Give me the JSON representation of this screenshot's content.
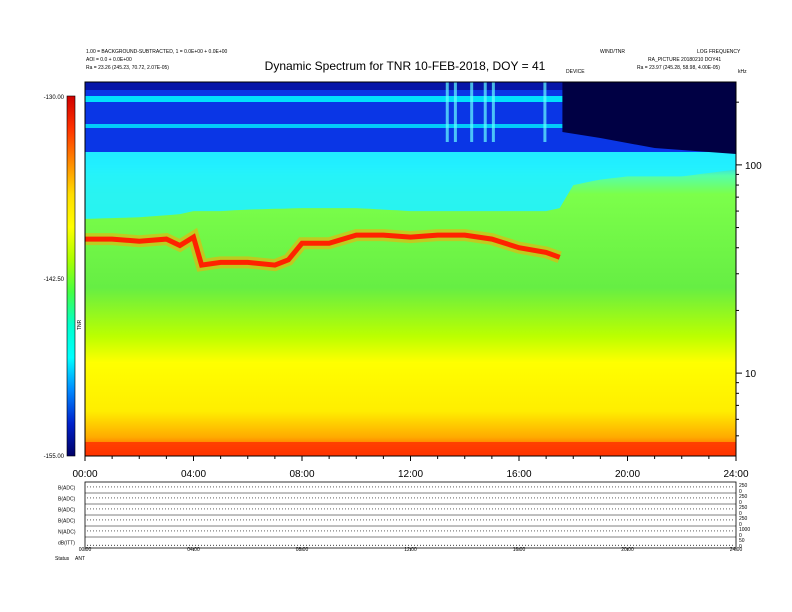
{
  "header": {
    "title": "Dynamic Spectrum for TNR 10-FEB-2018, DOY = 41",
    "meta_left": [
      "1.00 = BACKGROUND-SUBTRACTED, 1 = 0.0E+00 + 0.0E+00",
      "AOI = 0.0 + 0.0E+00",
      "Ra =  23.26 (245.23, 70.72, 2.07E-05)"
    ],
    "meta_right": [
      "WIND/TNR",
      "LOG FREQUENCY",
      "RA_PICTURE 20180210 DOY41",
      "Ra =  23.97 (245.28, 58.98, 4.00E-05)"
    ],
    "right_unit": "kHz",
    "note_mid": "DEVICE"
  },
  "colorbar": {
    "top_label": "-130.00",
    "mid_label": "-142.50",
    "bottom_label": "-155.00",
    "side_label": "TNR",
    "stops": [
      "#d00000",
      "#ff3300",
      "#ff8800",
      "#ffdd00",
      "#ffff00",
      "#aaff00",
      "#44ff44",
      "#00ffcc",
      "#00ffff",
      "#0088ff",
      "#0022cc",
      "#000066"
    ]
  },
  "chart_data": {
    "type": "heatmap",
    "title": "Dynamic Spectrum for TNR 10-FEB-2018, DOY = 41",
    "xlabel": "",
    "ylabel": "kHz",
    "x_ticks": [
      "00:00",
      "04:00",
      "08:00",
      "12:00",
      "16:00",
      "20:00",
      "24:00"
    ],
    "xlim": [
      0,
      24
    ],
    "y_scale": "log",
    "ylim": [
      4,
      250
    ],
    "y_ticks": [
      10,
      100
    ],
    "colorbar_range": [
      -155,
      -130
    ],
    "features": {
      "cyan_boundary_khz": [
        [
          0,
          55
        ],
        [
          2,
          56
        ],
        [
          3.5,
          58
        ],
        [
          4.0,
          60
        ],
        [
          5,
          60
        ],
        [
          6,
          61
        ],
        [
          8,
          62
        ],
        [
          10,
          62
        ],
        [
          12,
          60
        ],
        [
          13.5,
          60
        ],
        [
          15,
          60
        ],
        [
          17,
          60
        ],
        [
          17.5,
          62
        ],
        [
          18,
          80
        ],
        [
          19,
          85
        ],
        [
          20,
          88
        ],
        [
          22,
          88
        ],
        [
          24,
          95
        ]
      ],
      "red_ridge_khz": [
        [
          0,
          44
        ],
        [
          1,
          44
        ],
        [
          2,
          43
        ],
        [
          3,
          44
        ],
        [
          3.5,
          41
        ],
        [
          4.0,
          45
        ],
        [
          4.3,
          33
        ],
        [
          5,
          34
        ],
        [
          6,
          34
        ],
        [
          7,
          33
        ],
        [
          7.5,
          35
        ],
        [
          8,
          42
        ],
        [
          9,
          42
        ],
        [
          10,
          46
        ],
        [
          11,
          46
        ],
        [
          12,
          45
        ],
        [
          13,
          46
        ],
        [
          14,
          46
        ],
        [
          15,
          44
        ],
        [
          16,
          40
        ],
        [
          17,
          38
        ],
        [
          17.5,
          36
        ]
      ],
      "strong_zone": "low frequency below 10 kHz",
      "dark_zone": "high frequency above 100 kHz after 17:30"
    }
  },
  "lower_panel": {
    "rows": [
      {
        "label": "B(ADC)",
        "right_ticks": [
          "250",
          "0"
        ]
      },
      {
        "label": "B(ADC)",
        "right_ticks": [
          "250",
          "0"
        ]
      },
      {
        "label": "B(ADC)",
        "right_ticks": [
          "250",
          "0"
        ]
      },
      {
        "label": "B(ADC)",
        "right_ticks": [
          "250",
          "0"
        ]
      },
      {
        "label": "N(ADC)",
        "right_ticks": [
          "1000",
          "0"
        ]
      },
      {
        "label": "dB(ITT)",
        "right_ticks": [
          "50",
          "0"
        ]
      }
    ],
    "x_ticks": [
      "00:00",
      "04:00",
      "08:00",
      "12:00",
      "16:00",
      "20:00",
      "24:00"
    ],
    "status_label": "Status",
    "status_value": "ANT"
  }
}
